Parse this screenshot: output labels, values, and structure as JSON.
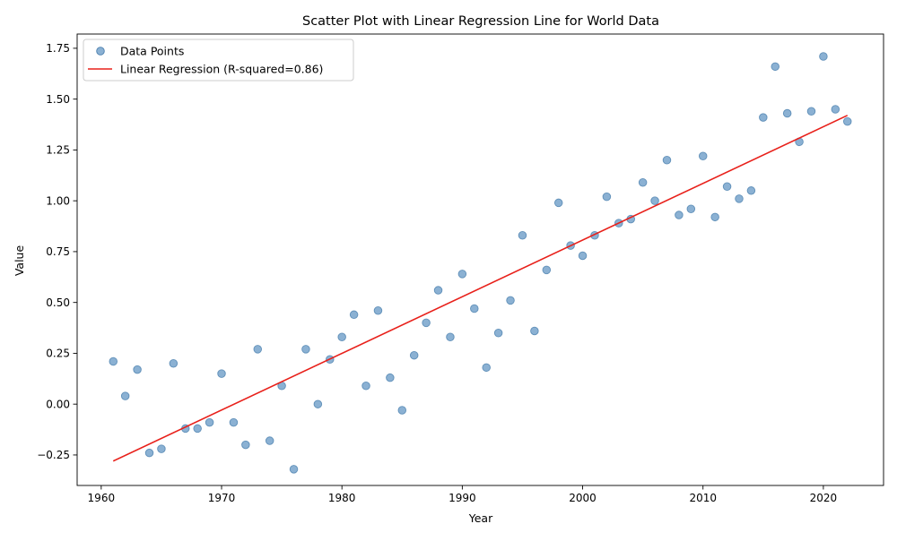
{
  "chart_data": {
    "type": "scatter",
    "title": "Scatter Plot with Linear Regression Line for World Data",
    "xlabel": "Year",
    "ylabel": "Value",
    "xlim": [
      1958,
      2025
    ],
    "ylim": [
      -0.4,
      1.82
    ],
    "xticks": [
      1960,
      1970,
      1980,
      1990,
      2000,
      2010,
      2020
    ],
    "yticks": [
      -0.25,
      0.0,
      0.25,
      0.5,
      0.75,
      1.0,
      1.25,
      1.5,
      1.75
    ],
    "grid": false,
    "legend_position": "top-left",
    "series": [
      {
        "name": "Data Points",
        "kind": "scatter",
        "color": "#6a9bc7",
        "points": [
          [
            1961,
            0.21
          ],
          [
            1962,
            0.04
          ],
          [
            1963,
            0.17
          ],
          [
            1964,
            -0.24
          ],
          [
            1965,
            -0.22
          ],
          [
            1966,
            0.2
          ],
          [
            1967,
            -0.12
          ],
          [
            1968,
            -0.12
          ],
          [
            1969,
            -0.09
          ],
          [
            1970,
            0.15
          ],
          [
            1971,
            -0.09
          ],
          [
            1972,
            -0.2
          ],
          [
            1973,
            0.27
          ],
          [
            1974,
            -0.18
          ],
          [
            1975,
            0.09
          ],
          [
            1976,
            -0.32
          ],
          [
            1977,
            0.27
          ],
          [
            1978,
            0.0
          ],
          [
            1979,
            0.22
          ],
          [
            1980,
            0.33
          ],
          [
            1981,
            0.44
          ],
          [
            1982,
            0.09
          ],
          [
            1983,
            0.46
          ],
          [
            1984,
            0.13
          ],
          [
            1985,
            -0.03
          ],
          [
            1986,
            0.24
          ],
          [
            1987,
            0.4
          ],
          [
            1988,
            0.56
          ],
          [
            1989,
            0.33
          ],
          [
            1990,
            0.64
          ],
          [
            1991,
            0.47
          ],
          [
            1992,
            0.18
          ],
          [
            1993,
            0.35
          ],
          [
            1994,
            0.51
          ],
          [
            1995,
            0.83
          ],
          [
            1996,
            0.36
          ],
          [
            1997,
            0.66
          ],
          [
            1998,
            0.99
          ],
          [
            1999,
            0.78
          ],
          [
            2000,
            0.73
          ],
          [
            2001,
            0.83
          ],
          [
            2002,
            1.02
          ],
          [
            2003,
            0.89
          ],
          [
            2004,
            0.91
          ],
          [
            2005,
            1.09
          ],
          [
            2006,
            1.0
          ],
          [
            2007,
            1.2
          ],
          [
            2008,
            0.93
          ],
          [
            2009,
            0.96
          ],
          [
            2010,
            1.22
          ],
          [
            2011,
            0.92
          ],
          [
            2012,
            1.07
          ],
          [
            2013,
            1.01
          ],
          [
            2014,
            1.05
          ],
          [
            2015,
            1.41
          ],
          [
            2016,
            1.66
          ],
          [
            2017,
            1.43
          ],
          [
            2018,
            1.29
          ],
          [
            2019,
            1.44
          ],
          [
            2020,
            1.71
          ],
          [
            2021,
            1.45
          ],
          [
            2022,
            1.39
          ]
        ]
      },
      {
        "name": "Linear Regression (R-squared=0.86)",
        "kind": "line",
        "color": "#e8201a",
        "points": [
          [
            1961,
            -0.28
          ],
          [
            2022,
            1.42
          ]
        ]
      }
    ]
  }
}
